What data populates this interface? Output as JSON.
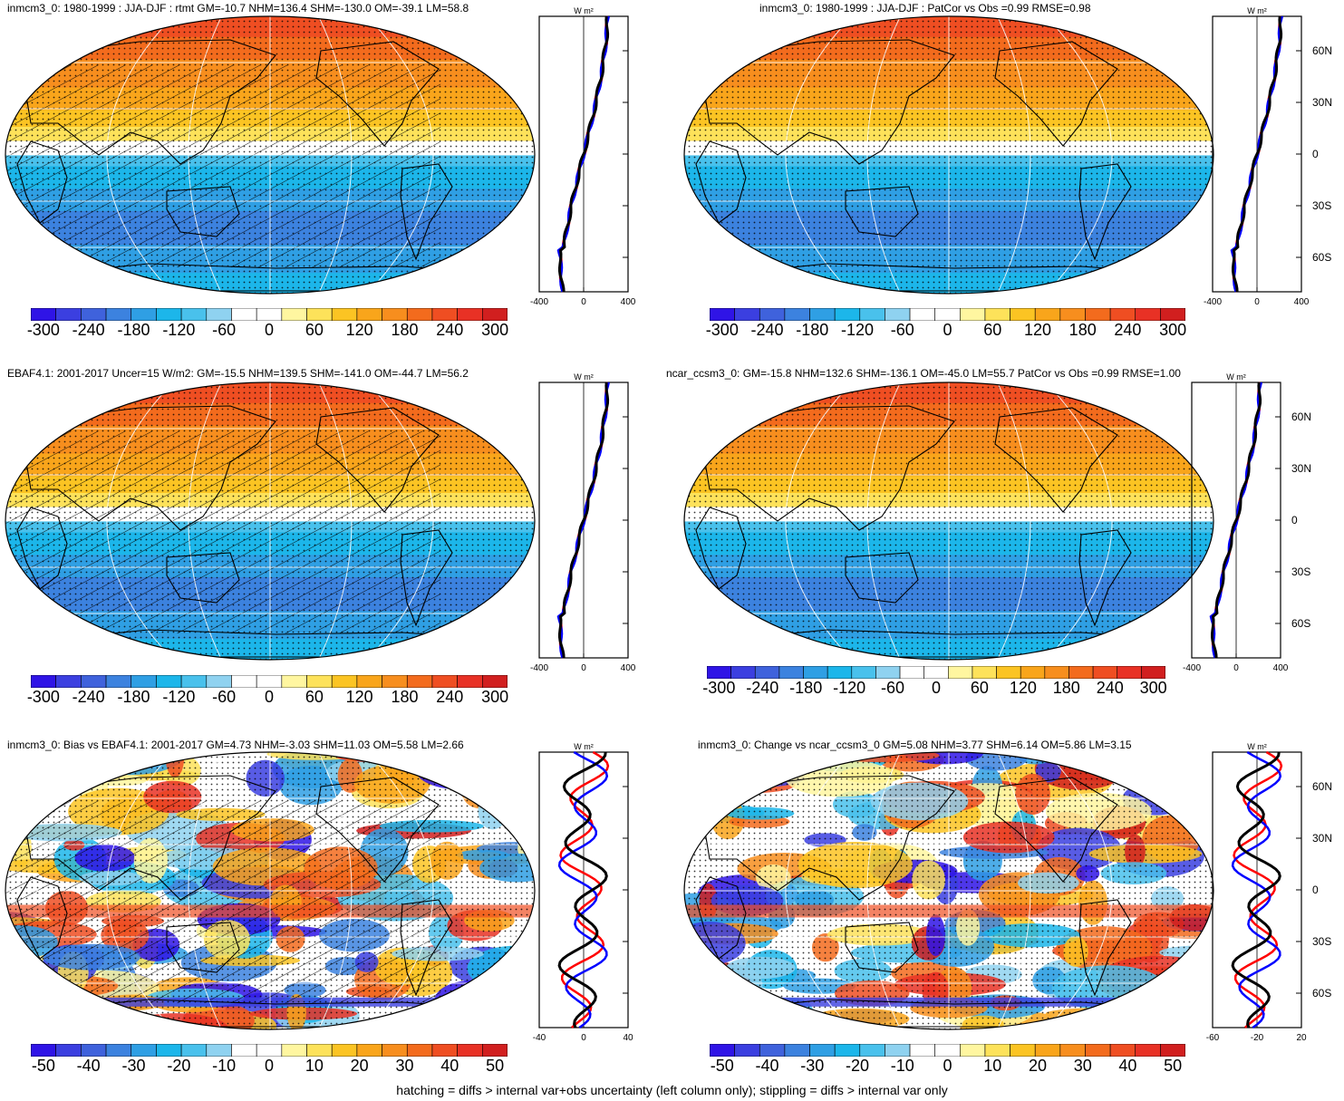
{
  "footer_note": "hatching = diffs > internal var+obs uncertainty (left column only); stippling = diffs > internal var only",
  "colors": {
    "scale": [
      "#2f14e6",
      "#3b3fe0",
      "#3f62dc",
      "#3c82df",
      "#2f9fe4",
      "#1cb6ea",
      "#49c1ec",
      "#8fd2f0",
      "#ffffff",
      "#ffffff",
      "#fff6a0",
      "#fde25a",
      "#fbc423",
      "#f9a51b",
      "#f78e1e",
      "#f36b1d",
      "#ef4e22",
      "#e83125",
      "#d11f1f"
    ],
    "coastline": "#000000",
    "graticule": "#ffffff",
    "profile_model": "#ff0000",
    "profile_obs": "#0000ff",
    "profile_mean": "#000000"
  },
  "panels": [
    {
      "id": "a",
      "title": "inmcm3_0: 1980-1999 : JJA-DJF : rtmt GM=-10.7 NHM=136.4 SHM=-130.0 OM=-39.1 LM=58.8",
      "type": "mean",
      "hatching": true,
      "profile_units": "W m²",
      "profile_xticks": [
        "-400",
        "0",
        "400"
      ],
      "lat_labels": [],
      "colorbar_labels": [
        "-300",
        "-240",
        "-180",
        "-120",
        "-60",
        "0",
        "60",
        "120",
        "180",
        "240",
        "300"
      ]
    },
    {
      "id": "b",
      "title": "inmcm3_0: 1980-1999 : JJA-DJF : PatCor vs Obs =0.99 RMSE=0.98",
      "type": "mean",
      "hatching": false,
      "profile_units": "W m²",
      "profile_xticks": [
        "-400",
        "0",
        "400"
      ],
      "lat_labels": [
        "60N",
        "30N",
        "0",
        "30S",
        "60S"
      ],
      "colorbar_labels": [
        "-300",
        "-240",
        "-180",
        "-120",
        "-60",
        "0",
        "60",
        "120",
        "180",
        "240",
        "300"
      ]
    },
    {
      "id": "c",
      "title": "EBAF4.1: 2001-2017 Uncer=15 W/m2: GM=-15.5 NHM=139.5 SHM=-141.0 OM=-44.7 LM=56.2",
      "type": "mean",
      "hatching": true,
      "profile_units": "W m²",
      "profile_xticks": [
        "-400",
        "0",
        "400"
      ],
      "lat_labels": [],
      "colorbar_labels": [
        "-300",
        "-240",
        "-180",
        "-120",
        "-60",
        "0",
        "60",
        "120",
        "180",
        "240",
        "300"
      ]
    },
    {
      "id": "d",
      "title": "ncar_ccsm3_0: GM=-15.8 NHM=132.6 SHM=-136.1 OM=-45.0 LM=55.7 PatCor vs Obs =0.99 RMSE=1.00",
      "type": "mean",
      "hatching": false,
      "profile_units": "W m²",
      "profile_xticks": [
        "-400",
        "0",
        "400"
      ],
      "lat_labels": [
        "60N",
        "30N",
        "0",
        "30S",
        "60S"
      ],
      "colorbar_labels": [
        "-300",
        "-240",
        "-180",
        "-120",
        "-60",
        "0",
        "60",
        "120",
        "180",
        "240",
        "300"
      ]
    },
    {
      "id": "e",
      "title": "inmcm3_0: Bias vs EBAF4.1: 2001-2017 GM=4.73 NHM=-3.03 SHM=11.03 OM=5.58 LM=2.66",
      "type": "diff",
      "hatching": true,
      "profile_units": "W m²",
      "profile_xticks": [
        "-40",
        "0",
        "40"
      ],
      "lat_labels": [],
      "colorbar_labels": [
        "-50",
        "-40",
        "-30",
        "-20",
        "-10",
        "0",
        "10",
        "20",
        "30",
        "40",
        "50"
      ]
    },
    {
      "id": "f",
      "title": "inmcm3_0: Change vs ncar_ccsm3_0 GM=5.08 NHM=3.77 SHM=6.14 OM=5.86 LM=3.15",
      "type": "diff",
      "hatching": false,
      "profile_units": "W m²",
      "profile_xticks": [
        "-60",
        "-20",
        "20"
      ],
      "lat_labels": [
        "60N",
        "30N",
        "0",
        "30S",
        "60S"
      ],
      "colorbar_labels": [
        "-50",
        "-40",
        "-30",
        "-20",
        "-10",
        "0",
        "10",
        "20",
        "30",
        "40",
        "50"
      ]
    }
  ]
}
